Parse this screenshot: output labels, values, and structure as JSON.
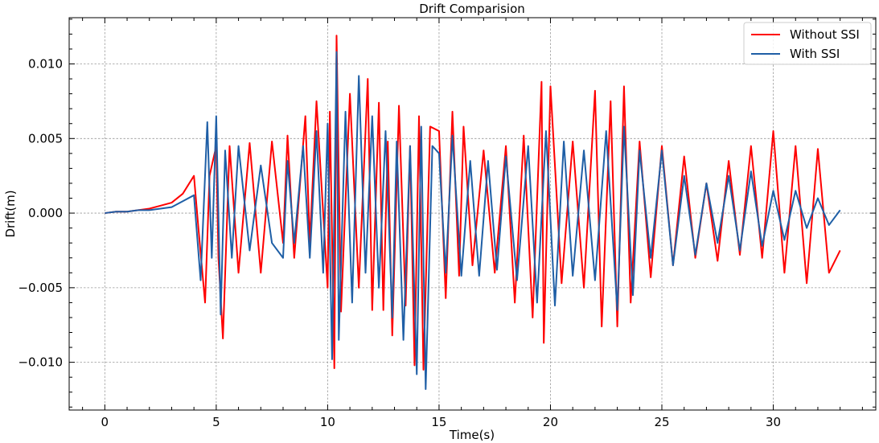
{
  "chart_data": {
    "type": "line",
    "title": "Drift Comparision",
    "xlabel": "Time(s)",
    "ylabel": "Drift(m)",
    "xlim": [
      -1.6,
      34.6
    ],
    "ylim": [
      -0.0132,
      0.0131
    ],
    "xticks": [
      0,
      5,
      10,
      15,
      20,
      25,
      30
    ],
    "xtick_labels": [
      "0",
      "5",
      "10",
      "15",
      "20",
      "25",
      "30"
    ],
    "yticks": [
      -0.01,
      -0.005,
      0.0,
      0.005,
      0.01
    ],
    "ytick_labels": [
      "−0.010",
      "−0.005",
      "0.000",
      "0.005",
      "0.010"
    ],
    "grid": true,
    "legend": "top-right",
    "series": [
      {
        "name": "Without SSI",
        "color": "#ff0000",
        "x": [
          0,
          0.5,
          1,
          1.5,
          2,
          2.5,
          3,
          3.5,
          4,
          4.2,
          4.5,
          4.7,
          5,
          5.1,
          5.3,
          5.6,
          6,
          6.5,
          7,
          7.5,
          8,
          8.2,
          8.5,
          9,
          9.2,
          9.5,
          10,
          10.1,
          10.3,
          10.4,
          10.6,
          11,
          11.4,
          11.8,
          12,
          12.3,
          12.5,
          12.7,
          12.9,
          13.2,
          13.5,
          13.7,
          13.9,
          14.1,
          14.3,
          14.6,
          15,
          15.3,
          15.6,
          15.9,
          16.1,
          16.5,
          17,
          17.5,
          18,
          18.4,
          18.8,
          19.2,
          19.6,
          19.7,
          20,
          20.5,
          21,
          21.5,
          22,
          22.3,
          22.7,
          23,
          23.3,
          23.6,
          24,
          24.5,
          25,
          25.5,
          26,
          26.5,
          27,
          27.5,
          28,
          28.5,
          29,
          29.5,
          30,
          30.5,
          31,
          31.5,
          32,
          32.5,
          33
        ],
        "y": [
          0,
          0.0001,
          0.0001,
          0.0002,
          0.0003,
          0.0005,
          0.0007,
          0.0013,
          0.0025,
          -0.001,
          -0.006,
          0.0025,
          0.0045,
          -0.003,
          -0.0084,
          0.0045,
          -0.004,
          0.0047,
          -0.004,
          0.0048,
          -0.002,
          0.0052,
          -0.003,
          0.0065,
          -0.002,
          0.0075,
          -0.005,
          0.0068,
          -0.0104,
          0.0119,
          -0.0066,
          0.008,
          -0.005,
          0.009,
          -0.0065,
          0.0074,
          -0.0065,
          0.0048,
          -0.0082,
          0.0072,
          -0.0062,
          0.0045,
          -0.0102,
          0.0065,
          -0.0105,
          0.0058,
          0.0055,
          -0.0057,
          0.0068,
          -0.0042,
          0.0058,
          -0.0035,
          0.0042,
          -0.004,
          0.0045,
          -0.006,
          0.0052,
          -0.007,
          0.0088,
          -0.0087,
          0.0085,
          -0.0047,
          0.0048,
          -0.005,
          0.0082,
          -0.0076,
          0.0075,
          -0.0076,
          0.0085,
          -0.006,
          0.0048,
          -0.0043,
          0.0045,
          -0.0035,
          0.0038,
          -0.003,
          0.002,
          -0.0032,
          0.0035,
          -0.0028,
          0.0045,
          -0.003,
          0.0055,
          -0.004,
          0.0045,
          -0.0047,
          0.0043,
          -0.004,
          -0.0025
        ]
      },
      {
        "name": "With SSI",
        "color": "#1f5fa6",
        "x": [
          0,
          0.5,
          1,
          1.5,
          2,
          2.5,
          3,
          3.5,
          4,
          4.3,
          4.6,
          4.8,
          5,
          5.2,
          5.4,
          5.7,
          6,
          6.5,
          7,
          7.5,
          8,
          8.2,
          8.5,
          8.9,
          9.2,
          9.5,
          9.8,
          10,
          10.2,
          10.4,
          10.5,
          10.8,
          11.1,
          11.4,
          11.7,
          12,
          12.3,
          12.6,
          12.9,
          13.1,
          13.4,
          13.7,
          14,
          14.2,
          14.4,
          14.7,
          15,
          15.3,
          15.6,
          16,
          16.4,
          16.8,
          17.2,
          17.6,
          18,
          18.5,
          19,
          19.4,
          19.8,
          20.2,
          20.6,
          21,
          21.5,
          22,
          22.5,
          23,
          23.3,
          23.7,
          24,
          24.5,
          25,
          25.5,
          26,
          26.5,
          27,
          27.5,
          28,
          28.5,
          29,
          29.5,
          30,
          30.5,
          31,
          31.5,
          32,
          32.5,
          33
        ],
        "y": [
          0,
          0.0001,
          0.0001,
          0.0002,
          0.0002,
          0.0003,
          0.0004,
          0.0008,
          0.0012,
          -0.0045,
          0.0061,
          -0.003,
          0.0065,
          -0.0068,
          0.0042,
          -0.003,
          0.0045,
          -0.0025,
          0.0032,
          -0.002,
          -0.003,
          0.0035,
          -0.002,
          0.0045,
          -0.003,
          0.0055,
          -0.004,
          0.006,
          -0.0098,
          0.0108,
          -0.0085,
          0.0068,
          -0.006,
          0.0092,
          -0.004,
          0.0065,
          -0.005,
          0.0055,
          -0.007,
          0.0048,
          -0.0085,
          0.0045,
          -0.0108,
          0.0058,
          -0.0118,
          0.0045,
          0.004,
          -0.004,
          0.0052,
          -0.0042,
          0.0035,
          -0.0042,
          0.0035,
          -0.0038,
          0.0038,
          -0.0045,
          0.0045,
          -0.006,
          0.0055,
          -0.0062,
          0.0048,
          -0.0042,
          0.0042,
          -0.0045,
          0.0055,
          -0.0065,
          0.0058,
          -0.0055,
          0.0042,
          -0.003,
          0.0042,
          -0.0035,
          0.0025,
          -0.0028,
          0.002,
          -0.002,
          0.0025,
          -0.0025,
          0.0028,
          -0.0022,
          0.0015,
          -0.0018,
          0.0015,
          -0.001,
          0.001,
          -0.0008,
          0.0002
        ]
      }
    ]
  }
}
